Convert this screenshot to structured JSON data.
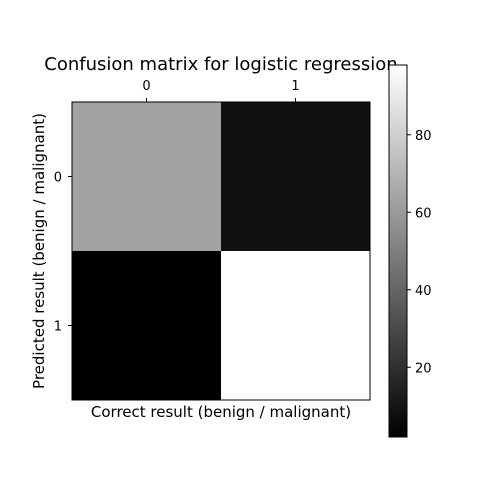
{
  "chart_data": {
    "type": "heatmap",
    "title": "Confusion matrix for logistic regression",
    "xlabel": "Correct result (benign / malignant)",
    "ylabel": "Predicted result (benign / malignant)",
    "x_categories": [
      "0",
      "1"
    ],
    "y_categories": [
      "0",
      "1"
    ],
    "x_tick_position": "top",
    "matrix": [
      [
        63,
        8
      ],
      [
        2,
        98
      ]
    ],
    "colormap": "gray",
    "colorbar": {
      "min": 2,
      "max": 98,
      "ticks": [
        20,
        40,
        60,
        80
      ]
    },
    "grid": false
  }
}
